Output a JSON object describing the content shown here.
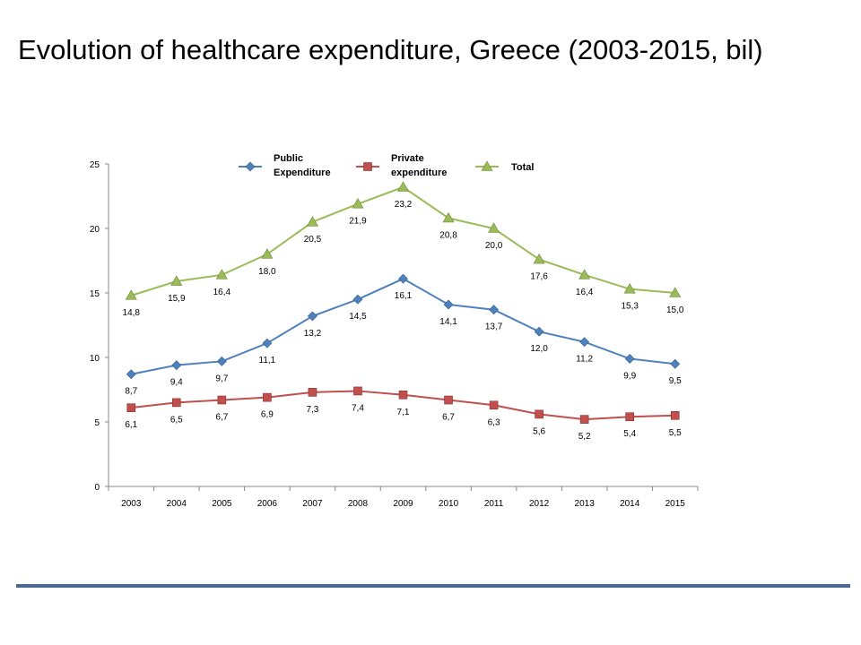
{
  "title": "Evolution of healthcare expenditure, Greece (2003-2015, bil)",
  "colors": {
    "rule": "#4a6a8f",
    "axis": "#888888"
  },
  "chart_data": {
    "type": "line",
    "x": [
      "2003",
      "2004",
      "2005",
      "2006",
      "2007",
      "2008",
      "2009",
      "2010",
      "2011",
      "2012",
      "2013",
      "2014",
      "2015"
    ],
    "ylim": [
      0,
      25
    ],
    "yticks": [
      0,
      5,
      10,
      15,
      20,
      25
    ],
    "grid": false,
    "legend": "top",
    "series": [
      {
        "name_lines": [
          "Public",
          "Expenditure"
        ],
        "marker": "diamond",
        "color": "#4f81bd",
        "values": [
          8.7,
          9.4,
          9.7,
          11.1,
          13.2,
          14.5,
          16.1,
          14.1,
          13.7,
          12.0,
          11.2,
          9.9,
          9.5
        ],
        "labels": [
          "8,7",
          "9,4",
          "9,7",
          "11,1",
          "13,2",
          "14,5",
          "16,1",
          "14,1",
          "13,7",
          "12,0",
          "11,2",
          "9,9",
          "9,5"
        ]
      },
      {
        "name_lines": [
          "Private",
          "expenditure"
        ],
        "marker": "square",
        "color": "#c0504d",
        "values": [
          6.1,
          6.5,
          6.7,
          6.9,
          7.3,
          7.4,
          7.1,
          6.7,
          6.3,
          5.6,
          5.2,
          5.4,
          5.5
        ],
        "labels": [
          "6,1",
          "6,5",
          "6,7",
          "6,9",
          "7,3",
          "7,4",
          "7,1",
          "6,7",
          "6,3",
          "5,6",
          "5,2",
          "5,4",
          "5,5"
        ]
      },
      {
        "name_lines": [
          "Total"
        ],
        "marker": "triangle",
        "color": "#9bbb59",
        "values": [
          14.8,
          15.9,
          16.4,
          18.0,
          20.5,
          21.9,
          23.2,
          20.8,
          20.0,
          17.6,
          16.4,
          15.3,
          15.0
        ],
        "labels": [
          "14,8",
          "15,9",
          "16,4",
          "18,0",
          "20,5",
          "21,9",
          "23,2",
          "20,8",
          "20,0",
          "17,6",
          "16,4",
          "15,3",
          "15,0"
        ]
      }
    ]
  }
}
